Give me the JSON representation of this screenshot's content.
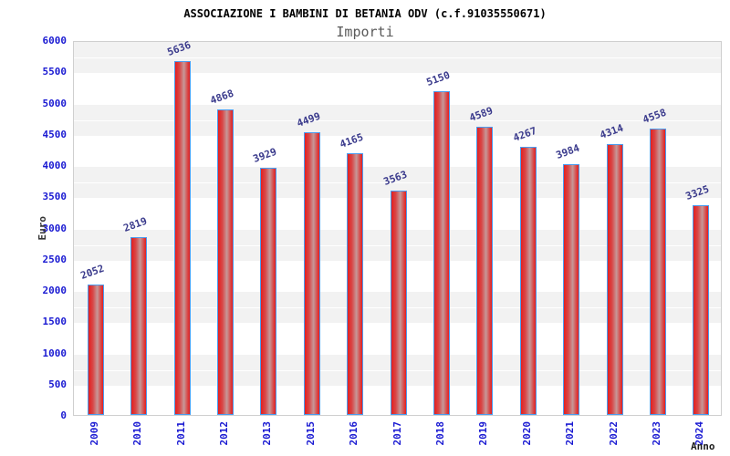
{
  "chart_data": {
    "type": "bar",
    "title": "ASSOCIAZIONE I BAMBINI DI BETANIA ODV (c.f.91035550671)",
    "subtitle": "Importi",
    "xlabel": "Anno",
    "ylabel": "Euro",
    "categories": [
      "2009",
      "2010",
      "2011",
      "2012",
      "2013",
      "2015",
      "2016",
      "2017",
      "2018",
      "2019",
      "2020",
      "2021",
      "2022",
      "2023",
      "2024"
    ],
    "values": [
      2052,
      2819,
      5636,
      4868,
      3929,
      4499,
      4165,
      3563,
      5150,
      4589,
      4267,
      3984,
      4314,
      4558,
      3325
    ],
    "ylim": [
      0,
      6000
    ],
    "ytick_step": 500,
    "grid": "alternating horizontal bands every 500 units with white sub-gridline every 250",
    "legend": "none",
    "colors": {
      "bar_edge_red": "#e41f1f",
      "bar_mid_red": "#d84848",
      "bar_light_center": "#c69898",
      "bar_border_blue": "#4a9cf0",
      "axis_label_blue": "#1a1ad2",
      "value_label_navy": "#3a3a8c",
      "band_gray": "#f2f2f2",
      "plot_border_gray": "#cfcfcf",
      "title_black": "#000000",
      "subtitle_gray": "#5a5a5a"
    }
  }
}
